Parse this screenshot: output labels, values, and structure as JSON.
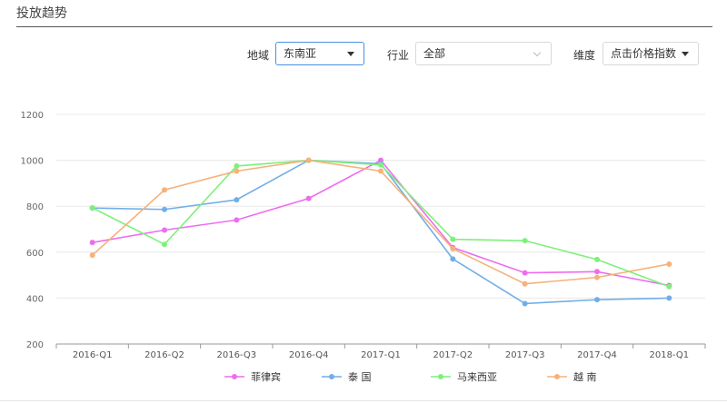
{
  "header": {
    "title": "投放趋势"
  },
  "filters": {
    "region_label": "地域",
    "region_value": "东南亚",
    "industry_label": "行业",
    "industry_value": "全部",
    "dimension_label": "维度",
    "dimension_value": "点击价格指数"
  },
  "chart_data": {
    "type": "line",
    "categories": [
      "2016-Q1",
      "2016-Q2",
      "2016-Q3",
      "2016-Q4",
      "2017-Q1",
      "2017-Q2",
      "2017-Q3",
      "2017-Q4",
      "2018-Q1"
    ],
    "ylim": [
      200,
      1200
    ],
    "yticks": [
      200,
      400,
      600,
      800,
      1000,
      1200
    ],
    "grid": "horizontal",
    "legend": "bottom",
    "series": [
      {
        "name": "菲律宾",
        "color": "#ee6cf0",
        "values": [
          642,
          696,
          740,
          834,
          1000,
          620,
          510,
          515,
          455
        ]
      },
      {
        "name": "泰 国",
        "color": "#72aee6",
        "values": [
          792,
          786,
          828,
          1000,
          985,
          570,
          376,
          393,
          400
        ]
      },
      {
        "name": "马来西亚",
        "color": "#7ef07a",
        "values": [
          793,
          634,
          975,
          1000,
          980,
          656,
          650,
          568,
          450
        ]
      },
      {
        "name": "越 南",
        "color": "#f5b27a",
        "values": [
          587,
          871,
          953,
          1000,
          953,
          615,
          462,
          490,
          548
        ]
      }
    ]
  }
}
